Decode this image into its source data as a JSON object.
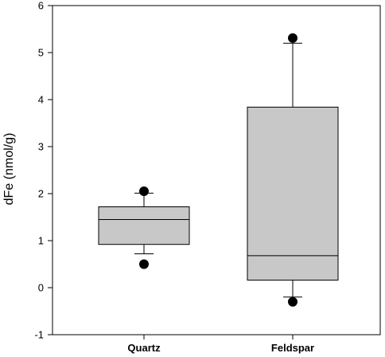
{
  "chart_data": {
    "type": "boxplot",
    "title": "",
    "xlabel": "",
    "ylabel": "dFe (nmol/g)",
    "ylim": [
      -1,
      6
    ],
    "yticks": [
      -1,
      0,
      1,
      2,
      3,
      4,
      5,
      6
    ],
    "grid": false,
    "legend": "none",
    "box_color": "#c8c8c8",
    "categories": [
      "Quartz",
      "Feldspar"
    ],
    "boxes": [
      {
        "name": "Quartz",
        "whisker_low": 0.72,
        "q1": 0.92,
        "median": 1.45,
        "q3": 1.72,
        "whisker_high": 2.01,
        "outliers": [
          0.5,
          2.05
        ]
      },
      {
        "name": "Feldspar",
        "whisker_low": -0.2,
        "q1": 0.16,
        "median": 0.68,
        "q3": 3.84,
        "whisker_high": 5.2,
        "outliers": [
          -0.3,
          5.31
        ]
      }
    ]
  }
}
